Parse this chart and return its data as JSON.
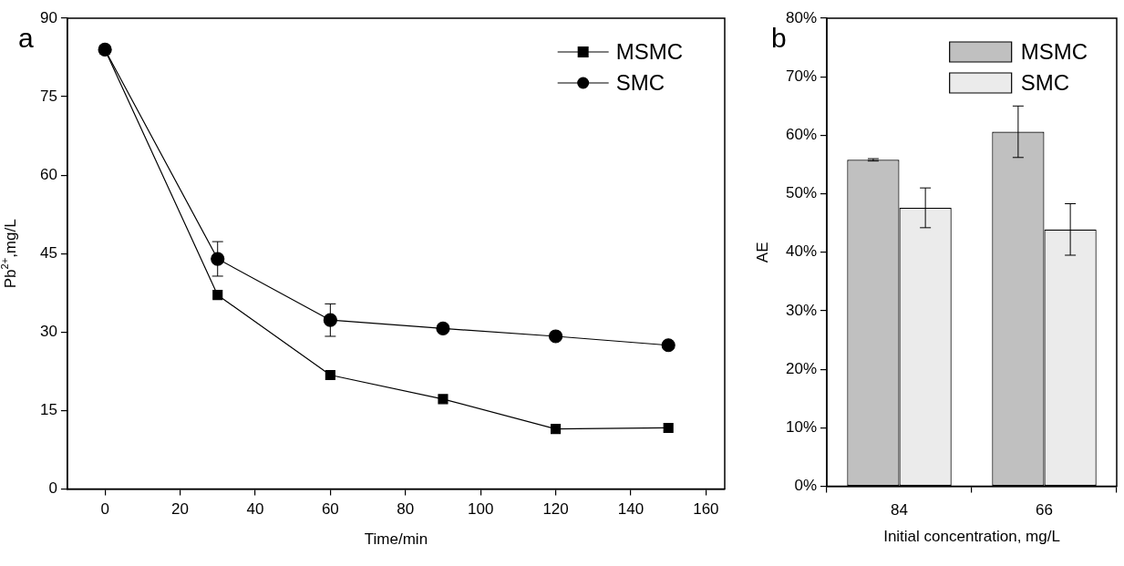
{
  "chart_data": [
    {
      "type": "line",
      "annotations": [
        "a"
      ],
      "xlabel": "Time/min",
      "ylabel": "Pb$^{2+}$,mg/L",
      "x": [
        0,
        30,
        60,
        90,
        120,
        150
      ],
      "series": [
        {
          "name": "MSMC",
          "color": "#000000",
          "marker": "square",
          "values": [
            84,
            37.1,
            21.8,
            17.2,
            11.5,
            11.7
          ]
        },
        {
          "name": "SMC",
          "color": "#000000",
          "marker": "circle",
          "values": [
            84,
            44,
            32.3,
            30.7,
            29.2,
            27.5
          ],
          "errors": [
            null,
            3.3,
            3.1,
            null,
            null,
            null
          ]
        }
      ],
      "xlim": [
        -10,
        165
      ],
      "xticks": [
        0,
        20,
        40,
        60,
        80,
        100,
        120,
        140,
        160
      ],
      "ylim": [
        0,
        90
      ],
      "yticks": [
        0,
        15,
        30,
        45,
        60,
        75,
        90
      ],
      "legend": "top right"
    },
    {
      "type": "bar",
      "annotations": [
        "b"
      ],
      "xlabel": "Initial concentration, mg/L",
      "ylabel": "AE",
      "categories": [
        "84",
        "66"
      ],
      "series": [
        {
          "name": "MSMC",
          "color": "#c0c0c0",
          "values": [
            55.8,
            60.6
          ],
          "errors": [
            0.2,
            4.4
          ]
        },
        {
          "name": "SMC",
          "color": "#ebebeb",
          "values": [
            47.6,
            43.9
          ],
          "errors": [
            3.4,
            4.4
          ]
        }
      ],
      "ylim": [
        0,
        80
      ],
      "yticks": [
        {
          "value": 0,
          "label": "0%"
        },
        {
          "value": 10,
          "label": "10%"
        },
        {
          "value": 20,
          "label": "20%"
        },
        {
          "value": 30,
          "label": "30%"
        },
        {
          "value": 40,
          "label": "40%"
        },
        {
          "value": 50,
          "label": "50%"
        },
        {
          "value": 60,
          "label": "60%"
        },
        {
          "value": 70,
          "label": "70%"
        },
        {
          "value": 80,
          "label": "80%"
        }
      ],
      "legend": "top right"
    }
  ]
}
